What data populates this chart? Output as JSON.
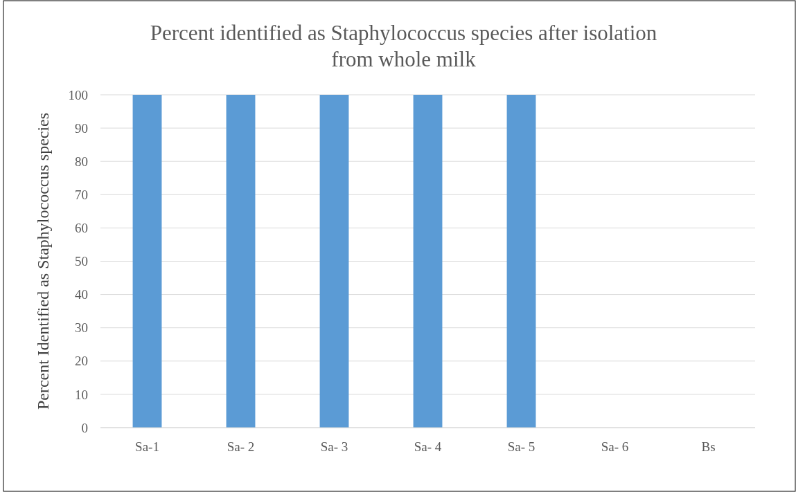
{
  "chart_data": {
    "type": "bar",
    "title": "Percent identified as Staphylococcus species after isolation from whole milk",
    "ylabel": "Percent Identified as Staphylococcus species",
    "categories": [
      "Sa-1",
      "Sa- 2",
      "Sa- 3",
      "Sa- 4",
      "Sa- 5",
      "Sa- 6",
      "Bs"
    ],
    "values": [
      100,
      100,
      100,
      100,
      100,
      0,
      0
    ],
    "color": "#5b9bd5",
    "ylim": [
      0,
      100
    ],
    "yticks": [
      0,
      10,
      20,
      30,
      40,
      50,
      60,
      70,
      80,
      90,
      100
    ],
    "grid": "y"
  }
}
